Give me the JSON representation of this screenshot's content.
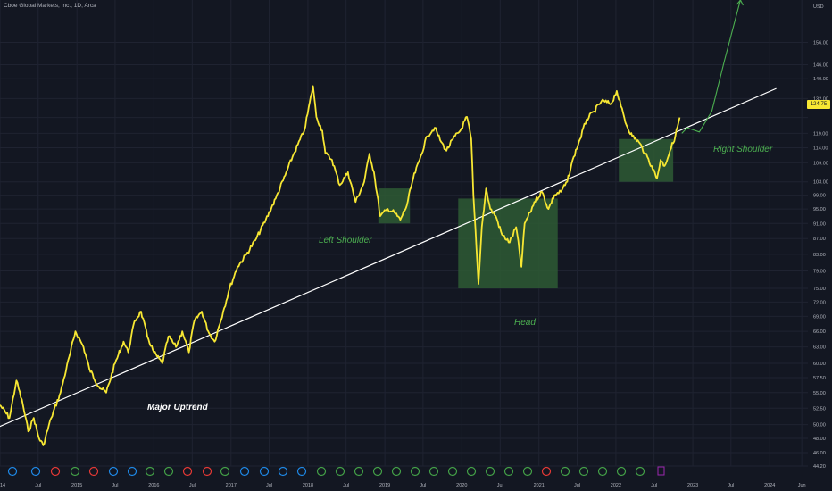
{
  "header": {
    "title": "Cboe Global Markets, Inc., 1D, Arca"
  },
  "colors": {
    "background": "#131722",
    "price_line": "#f7e733",
    "trendline": "#ffffff",
    "box_fill": "#2e5a34",
    "annotation_green": "#4caf50",
    "axis_text": "#b2b5be"
  },
  "annotations": {
    "left_shoulder": "Left Shoulder",
    "head": "Head",
    "right_shoulder": "Right Shoulder",
    "major_uptrend": "Major Uptrend"
  },
  "last_price_label": "124.75",
  "chart_data": {
    "type": "line",
    "title": "Cboe Global Markets, Inc., 1D, Arca",
    "currency_label": "USD",
    "y_scale": "log",
    "ylim": [
      44.2,
      177
    ],
    "xlim": [
      "2014-01-01",
      "2024-06-30"
    ],
    "y_ticks": [
      "44.20",
      "46.00",
      "48.00",
      "50.00",
      "52.50",
      "55.00",
      "57.50",
      "60.00",
      "63.00",
      "66.00",
      "69.00",
      "72.00",
      "75.00",
      "79.00",
      "83.00",
      "87.00",
      "91.00",
      "95.00",
      "99.00",
      "103.00",
      "109.00",
      "114.00",
      "119.00",
      "124.75",
      "132.00",
      "140.00",
      "146.00",
      "156.00"
    ],
    "x_ticks": [
      {
        "label": "2014",
        "date": "2014-01-01"
      },
      {
        "label": "Jul",
        "date": "2014-07-01"
      },
      {
        "label": "2015",
        "date": "2015-01-01"
      },
      {
        "label": "Jul",
        "date": "2015-07-01"
      },
      {
        "label": "2016",
        "date": "2016-01-01"
      },
      {
        "label": "Jul",
        "date": "2016-07-01"
      },
      {
        "label": "2017",
        "date": "2017-01-01"
      },
      {
        "label": "Jul",
        "date": "2017-07-01"
      },
      {
        "label": "2018",
        "date": "2018-01-01"
      },
      {
        "label": "Jul",
        "date": "2018-07-01"
      },
      {
        "label": "2019",
        "date": "2019-01-01"
      },
      {
        "label": "Jul",
        "date": "2019-07-01"
      },
      {
        "label": "2020",
        "date": "2020-01-01"
      },
      {
        "label": "Jul",
        "date": "2020-07-01"
      },
      {
        "label": "2021",
        "date": "2021-01-01"
      },
      {
        "label": "Jul",
        "date": "2021-07-01"
      },
      {
        "label": "2022",
        "date": "2022-01-01"
      },
      {
        "label": "Jul",
        "date": "2022-07-01"
      },
      {
        "label": "2023",
        "date": "2023-01-01"
      },
      {
        "label": "Jul",
        "date": "2023-07-01"
      },
      {
        "label": "2024",
        "date": "2024-01-01"
      },
      {
        "label": "Jun",
        "date": "2024-06-01"
      }
    ],
    "series": [
      {
        "points": [
          [
            "2014-01-01",
            53
          ],
          [
            "2014-02-15",
            51
          ],
          [
            "2014-03-20",
            57
          ],
          [
            "2014-04-20",
            53
          ],
          [
            "2014-05-15",
            49
          ],
          [
            "2014-06-10",
            51
          ],
          [
            "2014-07-05",
            48
          ],
          [
            "2014-07-25",
            47
          ],
          [
            "2014-09-01",
            51
          ],
          [
            "2014-10-15",
            55
          ],
          [
            "2014-12-01",
            62
          ],
          [
            "2014-12-25",
            66
          ],
          [
            "2015-02-01",
            63
          ],
          [
            "2015-03-01",
            59
          ],
          [
            "2015-04-15",
            56
          ],
          [
            "2015-05-20",
            55
          ],
          [
            "2015-07-01",
            60
          ],
          [
            "2015-08-10",
            64
          ],
          [
            "2015-09-01",
            62
          ],
          [
            "2015-10-01",
            68
          ],
          [
            "2015-11-01",
            70
          ],
          [
            "2015-12-01",
            65
          ],
          [
            "2016-01-01",
            62
          ],
          [
            "2016-02-10",
            60
          ],
          [
            "2016-03-10",
            65
          ],
          [
            "2016-04-15",
            63
          ],
          [
            "2016-05-15",
            66
          ],
          [
            "2016-06-15",
            62
          ],
          [
            "2016-07-10",
            68
          ],
          [
            "2016-08-15",
            70
          ],
          [
            "2016-09-15",
            66
          ],
          [
            "2016-10-15",
            64
          ],
          [
            "2016-11-25",
            70
          ],
          [
            "2016-12-25",
            75
          ],
          [
            "2017-02-01",
            80
          ],
          [
            "2017-03-15",
            83
          ],
          [
            "2017-05-01",
            87
          ],
          [
            "2017-06-15",
            92
          ],
          [
            "2017-08-01",
            98
          ],
          [
            "2017-09-15",
            105
          ],
          [
            "2017-10-20",
            111
          ],
          [
            "2017-12-15",
            120
          ],
          [
            "2018-01-25",
            137
          ],
          [
            "2018-02-10",
            125
          ],
          [
            "2018-03-10",
            120
          ],
          [
            "2018-03-25",
            112
          ],
          [
            "2018-04-25",
            110
          ],
          [
            "2018-06-01",
            102
          ],
          [
            "2018-07-10",
            106
          ],
          [
            "2018-08-15",
            97
          ],
          [
            "2018-09-25",
            103
          ],
          [
            "2018-10-20",
            112
          ],
          [
            "2018-11-10",
            106
          ],
          [
            "2018-12-10",
            93
          ],
          [
            "2019-01-15",
            95
          ],
          [
            "2019-02-15",
            94
          ],
          [
            "2019-03-15",
            92
          ],
          [
            "2019-04-15",
            96
          ],
          [
            "2019-05-15",
            104
          ],
          [
            "2019-06-15",
            110
          ],
          [
            "2019-07-20",
            118
          ],
          [
            "2019-08-25",
            121
          ],
          [
            "2019-09-25",
            116
          ],
          [
            "2019-10-20",
            113
          ],
          [
            "2019-11-20",
            117
          ],
          [
            "2019-12-25",
            120
          ],
          [
            "2020-01-25",
            125
          ],
          [
            "2020-02-15",
            117
          ],
          [
            "2020-02-25",
            99
          ],
          [
            "2020-03-20",
            76
          ],
          [
            "2020-04-05",
            90
          ],
          [
            "2020-04-25",
            101
          ],
          [
            "2020-05-15",
            95
          ],
          [
            "2020-06-10",
            93
          ],
          [
            "2020-07-10",
            88
          ],
          [
            "2020-08-15",
            86
          ],
          [
            "2020-09-15",
            90
          ],
          [
            "2020-10-10",
            80
          ],
          [
            "2020-10-25",
            91
          ],
          [
            "2020-11-20",
            94
          ],
          [
            "2020-12-10",
            97
          ],
          [
            "2021-01-15",
            100
          ],
          [
            "2021-02-15",
            95
          ],
          [
            "2021-03-15",
            99
          ],
          [
            "2021-04-15",
            100
          ],
          [
            "2021-05-15",
            103
          ],
          [
            "2021-06-15",
            111
          ],
          [
            "2021-07-15",
            117
          ],
          [
            "2021-08-15",
            124
          ],
          [
            "2021-09-20",
            127
          ],
          [
            "2021-10-25",
            131
          ],
          [
            "2021-12-10",
            130
          ],
          [
            "2022-01-05",
            135
          ],
          [
            "2022-01-25",
            129
          ],
          [
            "2022-02-20",
            122
          ],
          [
            "2022-03-20",
            118
          ],
          [
            "2022-04-20",
            116
          ],
          [
            "2022-05-20",
            112
          ],
          [
            "2022-06-20",
            108
          ],
          [
            "2022-07-15",
            104
          ],
          [
            "2022-08-01",
            110
          ],
          [
            "2022-08-20",
            108
          ],
          [
            "2022-09-15",
            113
          ],
          [
            "2022-10-10",
            118
          ],
          [
            "2022-10-31",
            124.75
          ]
        ]
      }
    ],
    "trendline": [
      [
        "2013-10-01",
        48.5
      ],
      [
        "2024-02-01",
        136
      ]
    ],
    "projection": [
      [
        "2022-11-10",
        119
      ],
      [
        "2022-12-05",
        121
      ],
      [
        "2023-02-01",
        119.5
      ],
      [
        "2023-04-01",
        127
      ],
      [
        "2023-06-01",
        148
      ],
      [
        "2023-08-15",
        177
      ]
    ],
    "boxes": [
      {
        "from": "2018-12-01",
        "to": "2019-04-30",
        "y_top": 101,
        "y_bottom": 91
      },
      {
        "from": "2019-12-15",
        "to": "2021-03-31",
        "y_top": 98,
        "y_bottom": 75
      },
      {
        "from": "2022-01-15",
        "to": "2022-09-30",
        "y_top": 117,
        "y_bottom": 103
      }
    ]
  }
}
